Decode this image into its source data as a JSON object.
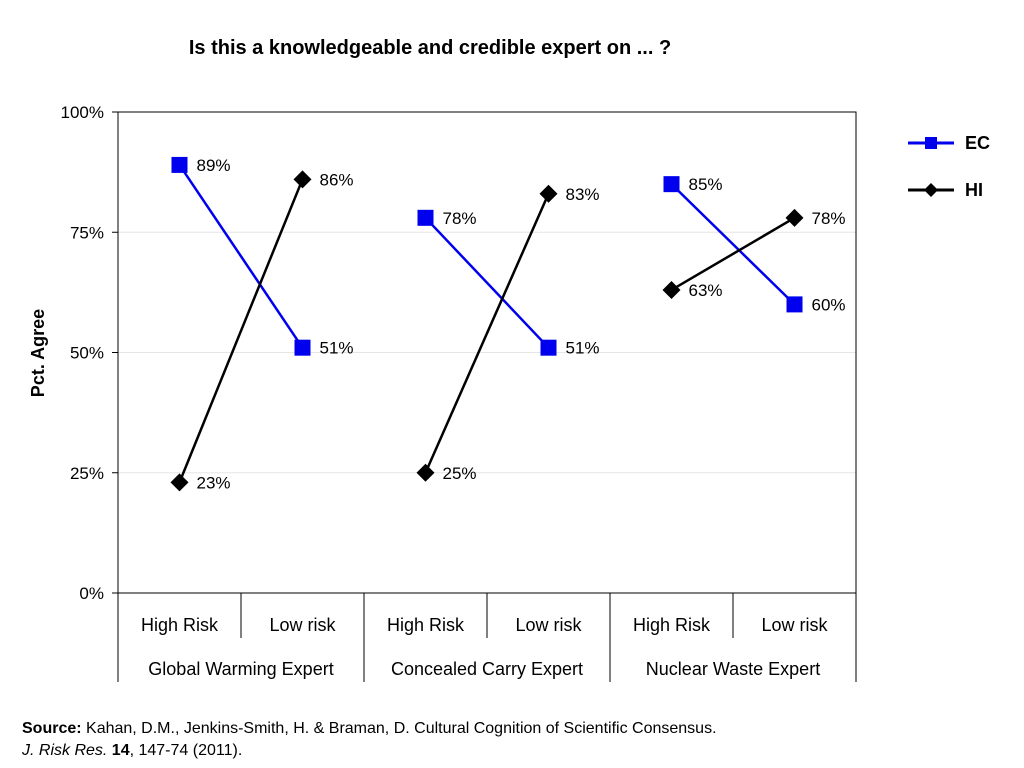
{
  "chart_data": {
    "type": "line",
    "title": "Is this a knowledgeable and credible  expert on ... ?",
    "ylabel": "Pct. Agree",
    "xlabel": "",
    "ylim": [
      0,
      100
    ],
    "yticks": [
      "0%",
      "25%",
      "50%",
      "75%",
      "100%"
    ],
    "grid": true,
    "legend_position": "right",
    "groups": [
      "Global Warming Expert",
      "Concealed Carry Expert",
      "Nuclear Waste Expert"
    ],
    "categories": [
      "High Risk",
      "Low risk",
      "High Risk",
      "Low risk",
      "High Risk",
      "Low risk"
    ],
    "series": [
      {
        "name": "EC",
        "color": "#0000ee",
        "marker": "square",
        "values": [
          89,
          51,
          78,
          51,
          85,
          60
        ],
        "labels": [
          "89%",
          "51%",
          "78%",
          "51%",
          "85%",
          "60%"
        ]
      },
      {
        "name": "HI",
        "color": "#000000",
        "marker": "diamond",
        "values": [
          23,
          86,
          25,
          83,
          63,
          78
        ],
        "labels": [
          "23%",
          "86%",
          "25%",
          "83%",
          "63%",
          "78%"
        ]
      }
    ]
  },
  "source": {
    "label": "Source:",
    "text": " Kahan, D.M., Jenkins-Smith, H. & Braman, D. Cultural Cognition of Scientific Consensus.",
    "journal": "J. Risk Res.",
    "volume": "14",
    "pages": ", 147-74 (2011)."
  }
}
